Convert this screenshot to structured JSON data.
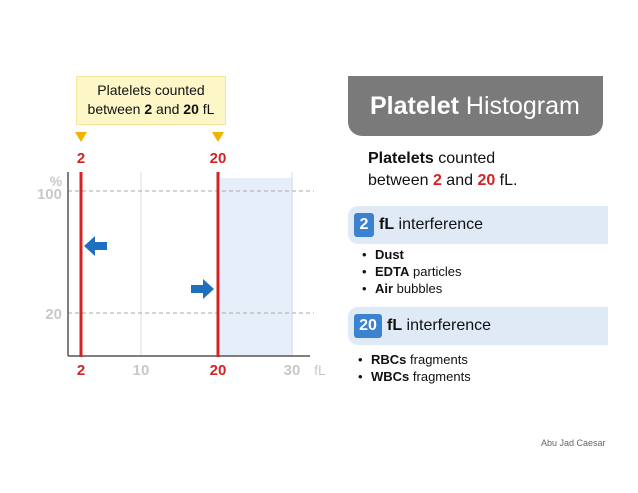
{
  "callout": {
    "line1": "Platelets counted",
    "between": "between ",
    "lo": "2",
    "and": " and ",
    "hi": "20",
    "unit": " fL"
  },
  "title": {
    "bold": "Platelet",
    "rest": " Histogram"
  },
  "summary": {
    "line1_bold": "Platelets",
    "line1_rest": " counted",
    "line2_pre": "between ",
    "lo": "2",
    "and": " and ",
    "hi": "20",
    "post": " fL."
  },
  "interference2": {
    "badge": "2",
    "unit": "fL",
    "label": " interference",
    "items": [
      {
        "bold": "Dust",
        "rest": ""
      },
      {
        "bold": "EDTA",
        "rest": " particles"
      },
      {
        "bold": "Air",
        "rest": " bubbles"
      }
    ]
  },
  "interference20": {
    "badge": "20",
    "unit": "fL",
    "label": " interference",
    "items": [
      {
        "bold": "RBCs",
        "rest": " fragments"
      },
      {
        "bold": "WBCs",
        "rest": " fragments"
      }
    ]
  },
  "chart": {
    "y_unit": "%",
    "y_ticks": [
      "100",
      "20"
    ],
    "x_ticks": [
      "2",
      "10",
      "20",
      "30"
    ],
    "x_unit": "fL",
    "marker_labels": [
      "2",
      "20"
    ]
  },
  "colors": {
    "red": "#d42323",
    "blue": "#1e6fbf",
    "marker": "#f0b400",
    "shade": "#e6eef9",
    "badge": "#3b82d1"
  },
  "credit": "Abu Jad Caesar"
}
